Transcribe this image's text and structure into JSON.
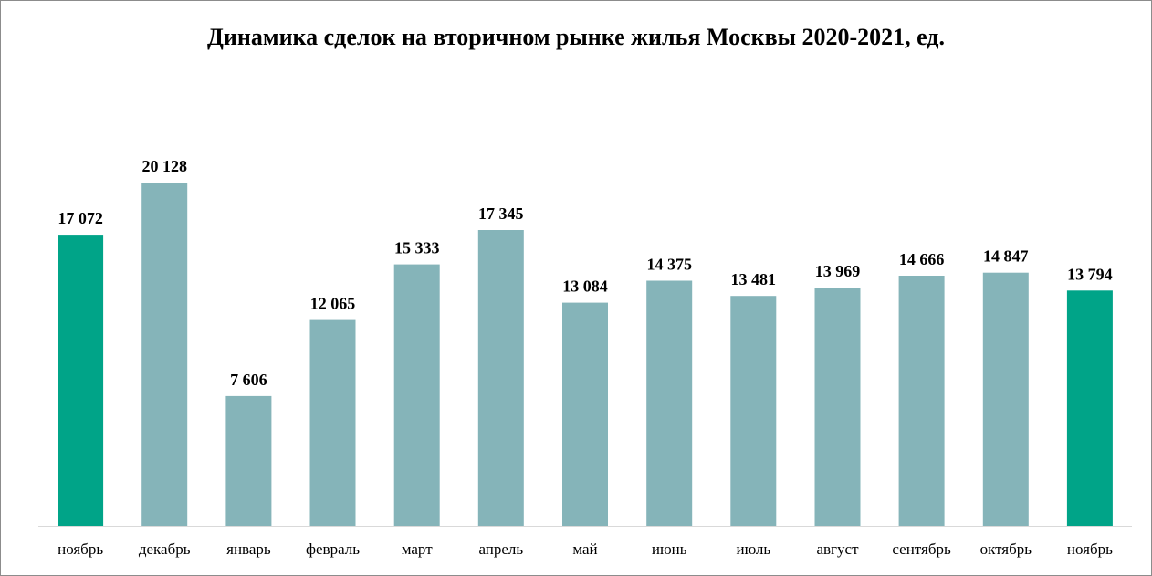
{
  "chart_data": {
    "type": "bar",
    "title": "Динамика сделок на вторичном рынке жилья Москвы 2020-2021, ед.",
    "xlabel": "",
    "ylabel": "",
    "categories": [
      "ноябрь",
      "декабрь",
      "январь",
      "февраль",
      "март",
      "апрель",
      "май",
      "июнь",
      "июль",
      "август",
      "сентябрь",
      "октябрь",
      "ноябрь"
    ],
    "values": [
      17072,
      20128,
      7606,
      12065,
      15333,
      17345,
      13084,
      14375,
      13481,
      13969,
      14666,
      14847,
      13794
    ],
    "value_labels": [
      "17 072",
      "20 128",
      "7 606",
      "12 065",
      "15 333",
      "17 345",
      "13 084",
      "14 375",
      "13 481",
      "13 969",
      "14 666",
      "14 847",
      "13 794"
    ],
    "bar_colors": [
      "#00a488",
      "#85b4b9",
      "#85b4b9",
      "#85b4b9",
      "#85b4b9",
      "#85b4b9",
      "#85b4b9",
      "#85b4b9",
      "#85b4b9",
      "#85b4b9",
      "#85b4b9",
      "#85b4b9",
      "#00a488"
    ],
    "highlight_color": "#00a488",
    "bar_color": "#85b4b9",
    "axis_color": "#d9d9d9",
    "ylim": [
      0,
      21000
    ],
    "grid": false,
    "legend": "none"
  }
}
